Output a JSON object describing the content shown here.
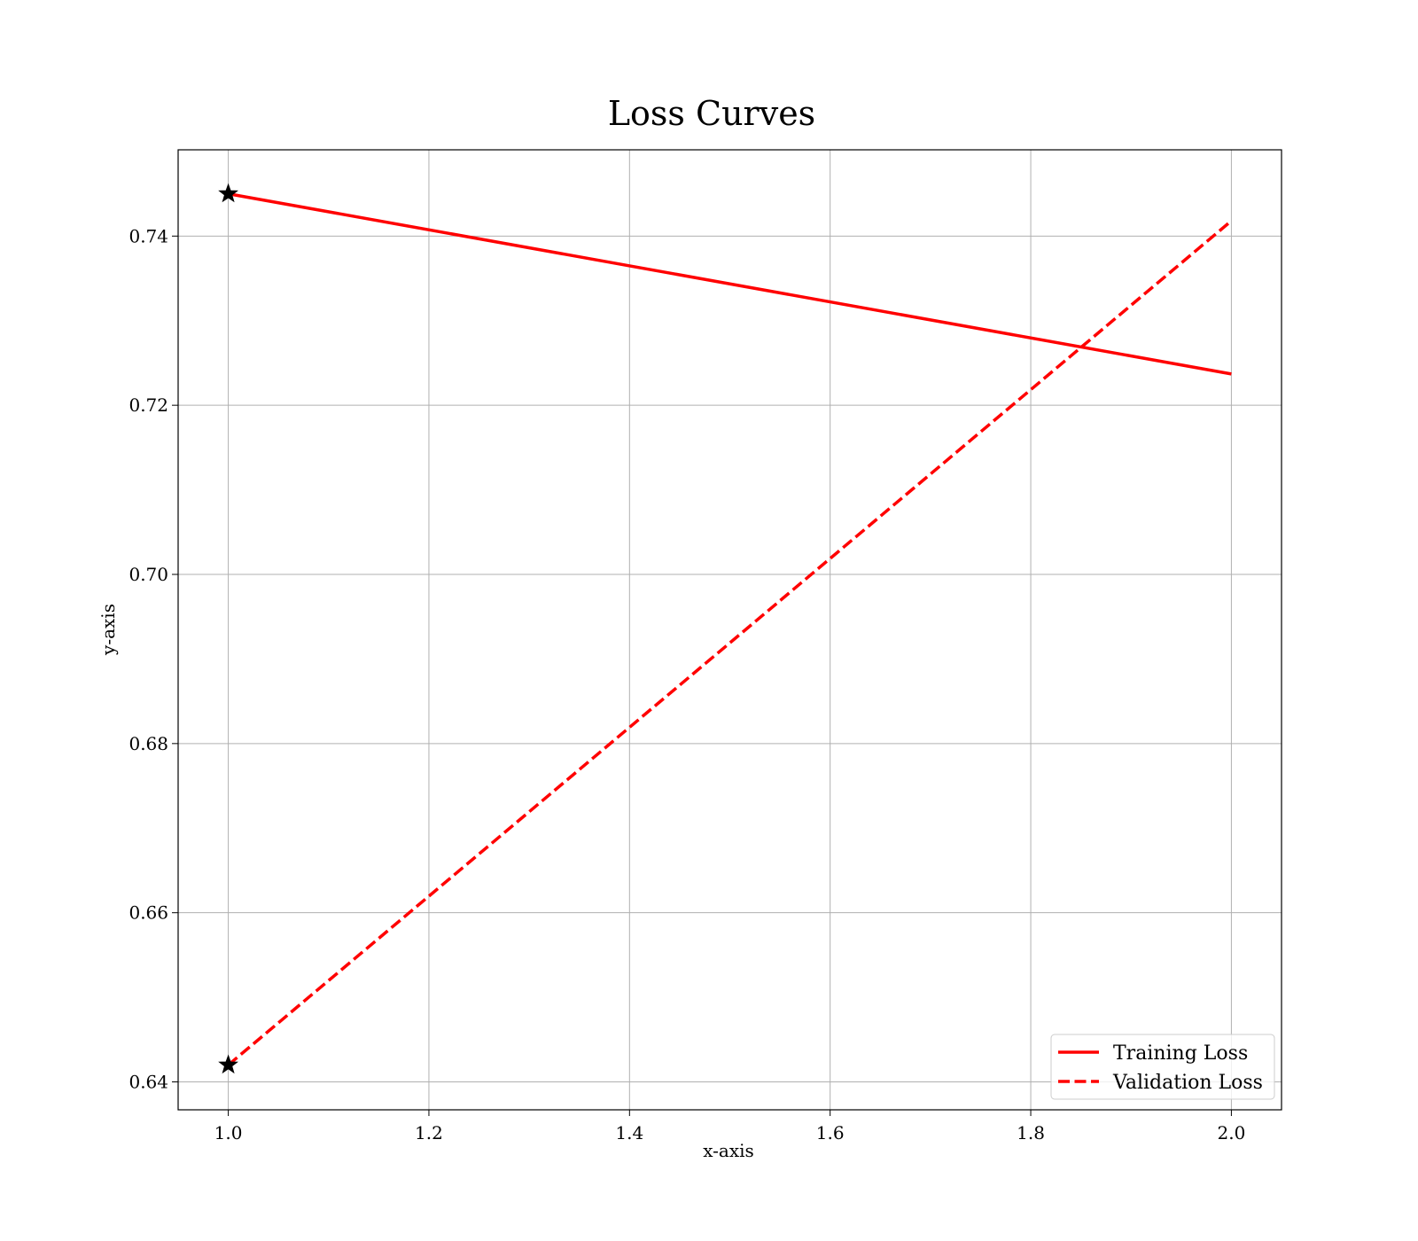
{
  "chart_data": {
    "type": "line",
    "title": "Loss Curves",
    "xlabel": "x-axis",
    "ylabel": "y-axis",
    "xlim": [
      0.95,
      2.05
    ],
    "ylim": [
      0.6367,
      0.7502
    ],
    "xticks": [
      1.0,
      1.2,
      1.4,
      1.6,
      1.8,
      2.0
    ],
    "xtick_labels": [
      "1.0",
      "1.2",
      "1.4",
      "1.6",
      "1.8",
      "2.0"
    ],
    "yticks": [
      0.64,
      0.66,
      0.68,
      0.7,
      0.72,
      0.74
    ],
    "ytick_labels": [
      "0.64",
      "0.66",
      "0.68",
      "0.70",
      "0.72",
      "0.74"
    ],
    "grid": true,
    "legend_position": "lower-right",
    "series": [
      {
        "name": "Training Loss",
        "x": [
          1.0,
          2.0
        ],
        "y": [
          0.745,
          0.7237
        ],
        "color": "#ff0000",
        "line_style": "solid",
        "markers": [
          {
            "x": 1.0,
            "y": 0.745,
            "shape": "star",
            "color": "#000000"
          }
        ]
      },
      {
        "name": "Validation Loss",
        "x": [
          1.0,
          2.0
        ],
        "y": [
          0.642,
          0.7418
        ],
        "color": "#ff0000",
        "line_style": "dashed",
        "markers": [
          {
            "x": 1.0,
            "y": 0.642,
            "shape": "star",
            "color": "#000000"
          }
        ]
      }
    ]
  }
}
